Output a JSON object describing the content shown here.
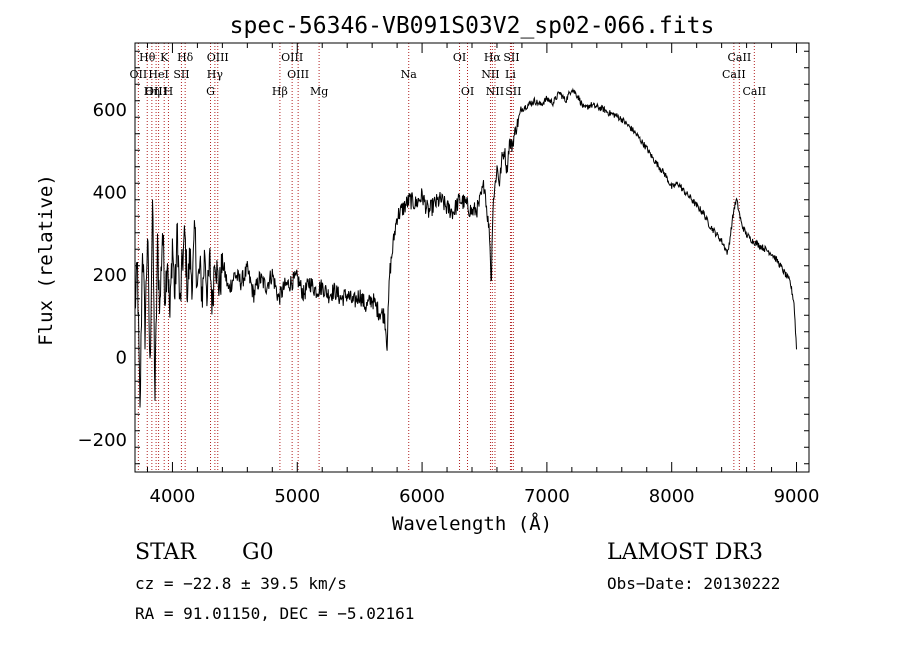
{
  "chart_data": {
    "type": "line",
    "title": "spec-56346-VB091S03V2_sp02-066.fits",
    "xlabel": "Wavelength (Å)",
    "ylabel": "Flux (relative)",
    "xlim": [
      3700,
      9100
    ],
    "ylim": [
      -280,
      760
    ],
    "x_ticks": [
      4000,
      5000,
      6000,
      7000,
      8000,
      9000
    ],
    "y_ticks": [
      -200,
      0,
      200,
      400,
      600
    ],
    "series": [
      {
        "name": "flux",
        "x": [
          3700,
          3720,
          3740,
          3760,
          3780,
          3800,
          3820,
          3840,
          3860,
          3880,
          3900,
          3920,
          3940,
          3960,
          3980,
          4000,
          4020,
          4040,
          4060,
          4080,
          4100,
          4120,
          4140,
          4160,
          4180,
          4200,
          4220,
          4240,
          4260,
          4280,
          4300,
          4320,
          4340,
          4360,
          4380,
          4400,
          4450,
          4500,
          4550,
          4600,
          4650,
          4700,
          4750,
          4800,
          4850,
          4900,
          4950,
          5000,
          5050,
          5100,
          5150,
          5200,
          5250,
          5300,
          5350,
          5400,
          5450,
          5500,
          5550,
          5600,
          5650,
          5700,
          5720,
          5740,
          5760,
          5780,
          5800,
          5850,
          5900,
          5950,
          6000,
          6050,
          6100,
          6150,
          6200,
          6250,
          6300,
          6350,
          6400,
          6450,
          6500,
          6520,
          6540,
          6555,
          6563,
          6570,
          6580,
          6600,
          6620,
          6640,
          6660,
          6680,
          6700,
          6720,
          6750,
          6800,
          6850,
          6900,
          6950,
          7000,
          7050,
          7100,
          7150,
          7200,
          7250,
          7300,
          7350,
          7400,
          7450,
          7500,
          7550,
          7600,
          7650,
          7700,
          7750,
          7800,
          7850,
          7900,
          7950,
          8000,
          8050,
          8100,
          8150,
          8200,
          8250,
          8300,
          8350,
          8400,
          8450,
          8500,
          8520,
          8540,
          8560,
          8600,
          8650,
          8700,
          8750,
          8800,
          8850,
          8900,
          8950,
          8980,
          9000
        ],
        "values": [
          120,
          210,
          -150,
          280,
          60,
          300,
          -40,
          380,
          -100,
          260,
          120,
          310,
          150,
          250,
          90,
          280,
          140,
          310,
          110,
          230,
          290,
          160,
          240,
          180,
          300,
          170,
          210,
          150,
          260,
          140,
          230,
          120,
          260,
          190,
          170,
          230,
          160,
          200,
          180,
          210,
          150,
          190,
          170,
          200,
          140,
          170,
          180,
          190,
          150,
          180,
          160,
          170,
          150,
          160,
          140,
          150,
          130,
          150,
          120,
          140,
          110,
          100,
          30,
          200,
          250,
          300,
          340,
          360,
          380,
          370,
          390,
          350,
          370,
          380,
          360,
          350,
          380,
          370,
          350,
          360,
          420,
          350,
          300,
          170,
          320,
          380,
          400,
          460,
          420,
          480,
          500,
          450,
          520,
          510,
          550,
          600,
          610,
          620,
          610,
          625,
          615,
          640,
          620,
          650,
          630,
          600,
          610,
          605,
          600,
          590,
          585,
          575,
          560,
          545,
          525,
          505,
          480,
          460,
          440,
          410,
          420,
          400,
          385,
          365,
          350,
          320,
          300,
          280,
          250,
          360,
          380,
          350,
          320,
          295,
          280,
          270,
          260,
          250,
          230,
          205,
          180,
          130,
          20
        ]
      }
    ],
    "lines": [
      {
        "label": "Hθ",
        "x": 3798,
        "row": 1
      },
      {
        "label": "OII",
        "x": 3727,
        "row": 2
      },
      {
        "label": "OIII",
        "x": 3869,
        "row": 3
      },
      {
        "label": "HeI",
        "x": 3889,
        "row": 2
      },
      {
        "label": "Hη",
        "x": 3835,
        "row": 3
      },
      {
        "label": "K",
        "x": 3934,
        "row": 1
      },
      {
        "label": "H",
        "x": 3968,
        "row": 3
      },
      {
        "label": "SII",
        "x": 4072,
        "row": 2
      },
      {
        "label": "Hδ",
        "x": 4102,
        "row": 1
      },
      {
        "label": "OIII",
        "x": 4363,
        "row": 1
      },
      {
        "label": "Hγ",
        "x": 4340,
        "row": 2
      },
      {
        "label": "G",
        "x": 4305,
        "row": 3
      },
      {
        "label": "OIII",
        "x": 4959,
        "row": 1
      },
      {
        "label": "OIII",
        "x": 5007,
        "row": 2
      },
      {
        "label": "Hβ",
        "x": 4861,
        "row": 3
      },
      {
        "label": "Mg",
        "x": 5175,
        "row": 3
      },
      {
        "label": "Na",
        "x": 5893,
        "row": 2
      },
      {
        "label": "OI",
        "x": 6300,
        "row": 1
      },
      {
        "label": "OI",
        "x": 6364,
        "row": 3
      },
      {
        "label": "Hα",
        "x": 6563,
        "row": 1
      },
      {
        "label": "SII",
        "x": 6716,
        "row": 1
      },
      {
        "label": "NII",
        "x": 6548,
        "row": 2
      },
      {
        "label": "Li",
        "x": 6708,
        "row": 2
      },
      {
        "label": "NII",
        "x": 6584,
        "row": 3
      },
      {
        "label": "SII",
        "x": 6731,
        "row": 3
      },
      {
        "label": "CaII",
        "x": 8542,
        "row": 1
      },
      {
        "label": "CaII",
        "x": 8498,
        "row": 2
      },
      {
        "label": "CaII",
        "x": 8662,
        "row": 3
      }
    ]
  },
  "info": {
    "class": "STAR",
    "subclass": "G0",
    "survey": "LAMOST DR3",
    "cz": "cz = −22.8 ± 39.5 km/s",
    "obs_date": "Obs−Date: 20130222",
    "radec": "RA =  91.01150, DEC =  −5.02161"
  },
  "colors": {
    "line_marker": "#b22222",
    "spectrum": "#000000"
  }
}
